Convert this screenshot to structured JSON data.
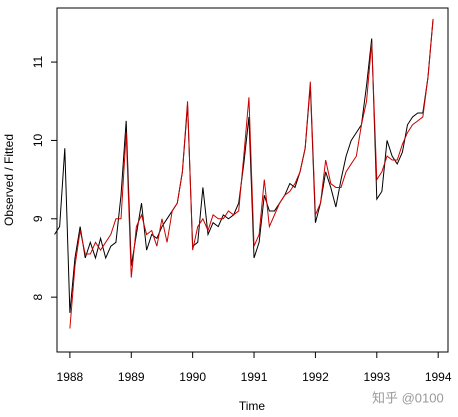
{
  "chart_data": {
    "type": "line",
    "x_label": "Time",
    "y_label": "Observed / Fitted",
    "watermark": "知乎 @0100",
    "x": [
      1987.75,
      1987.833,
      1987.917,
      1988,
      1988.083,
      1988.167,
      1988.25,
      1988.333,
      1988.417,
      1988.5,
      1988.583,
      1988.667,
      1988.75,
      1988.833,
      1988.917,
      1989,
      1989.083,
      1989.167,
      1989.25,
      1989.333,
      1989.417,
      1989.5,
      1989.583,
      1989.667,
      1989.75,
      1989.833,
      1989.917,
      1990,
      1990.083,
      1990.167,
      1990.25,
      1990.333,
      1990.417,
      1990.5,
      1990.583,
      1990.667,
      1990.75,
      1990.833,
      1990.917,
      1991,
      1991.083,
      1991.167,
      1991.25,
      1991.333,
      1991.417,
      1991.5,
      1991.583,
      1991.667,
      1991.75,
      1991.833,
      1991.917,
      1992,
      1992.083,
      1992.167,
      1992.25,
      1992.333,
      1992.417,
      1992.5,
      1992.583,
      1992.667,
      1992.75,
      1992.833,
      1992.917,
      1993,
      1993.083,
      1993.167,
      1993.25,
      1993.333,
      1993.417,
      1993.5,
      1993.583,
      1993.667,
      1993.75,
      1993.833,
      1993.917
    ],
    "series": [
      {
        "color": "#000000",
        "values": [
          8.8,
          8.9,
          9.9,
          7.8,
          8.5,
          8.9,
          8.5,
          8.7,
          8.5,
          8.75,
          8.5,
          8.65,
          8.7,
          9.3,
          10.25,
          8.4,
          8.8,
          9.2,
          8.6,
          8.8,
          8.75,
          8.9,
          9.0,
          9.1,
          9.2,
          9.6,
          10.45,
          8.65,
          8.7,
          9.4,
          8.8,
          8.95,
          8.9,
          9.05,
          9.0,
          9.05,
          9.2,
          9.7,
          10.3,
          8.5,
          8.7,
          9.3,
          9.1,
          9.1,
          9.2,
          9.3,
          9.45,
          9.4,
          9.6,
          9.9,
          10.7,
          8.95,
          9.2,
          9.6,
          9.4,
          9.15,
          9.5,
          9.8,
          10.0,
          10.1,
          10.2,
          10.7,
          11.3,
          9.25,
          9.35,
          10.0,
          9.8,
          9.7,
          9.85,
          10.2,
          10.3,
          10.35,
          10.35,
          10.8,
          11.55
        ]
      },
      {
        "color": "#cc0000",
        "values": [
          null,
          null,
          null,
          7.6,
          8.4,
          8.85,
          8.55,
          8.55,
          8.7,
          8.6,
          8.7,
          8.8,
          9.0,
          9.0,
          10.1,
          8.25,
          8.9,
          9.05,
          8.8,
          8.85,
          8.65,
          9.0,
          8.7,
          9.1,
          9.2,
          9.6,
          10.5,
          8.6,
          8.9,
          9.0,
          8.85,
          9.05,
          9.0,
          9.0,
          9.1,
          9.05,
          9.1,
          9.8,
          10.55,
          8.65,
          8.8,
          9.5,
          8.9,
          9.05,
          9.2,
          9.3,
          9.35,
          9.45,
          9.6,
          9.9,
          10.75,
          9.05,
          9.2,
          9.75,
          9.45,
          9.4,
          9.4,
          9.6,
          9.7,
          9.8,
          10.2,
          10.5,
          11.25,
          9.5,
          9.6,
          9.8,
          9.75,
          9.75,
          9.95,
          10.1,
          10.2,
          10.25,
          10.3,
          10.8,
          11.55
        ]
      }
    ],
    "xlim": [
      1987.79,
      1994.16
    ],
    "xticks": [
      1988,
      1989,
      1990,
      1991,
      1992,
      1993,
      1994
    ],
    "ylim": [
      7.3,
      11.69
    ],
    "yticks": [
      8,
      9,
      10,
      11
    ]
  }
}
